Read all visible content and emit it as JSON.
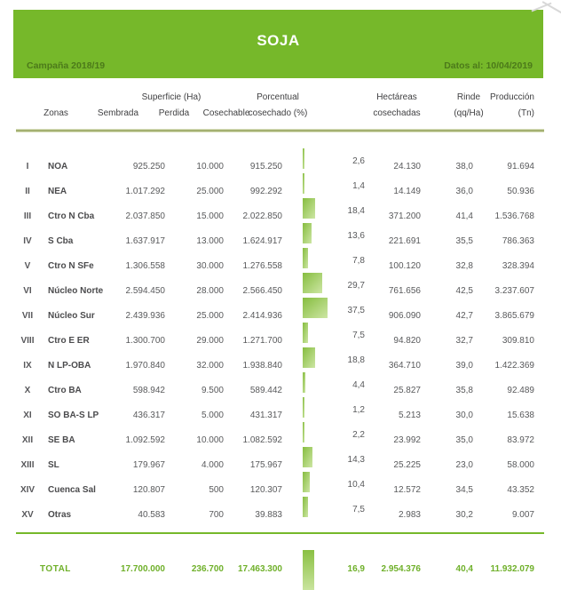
{
  "banner": {
    "title": "SOJA",
    "campaign": "Campaña 2018/19",
    "data_as_of": "Datos al: 10/04/2019"
  },
  "colors": {
    "primary_green": "#76b82a",
    "banner_text_green": "#4c7a1a",
    "table_text": "#58595b",
    "total_text": "#6fb02a",
    "bar_gradient_start": "#86bd3f",
    "bar_gradient_end": "#cde6a4"
  },
  "table": {
    "group_header": "Superficie (Ha)",
    "columns": {
      "zonas": "Zonas",
      "sembrada": "Sembrada",
      "perdida": "Perdida",
      "cosechable": "Cosechable",
      "porcentual_line1": "Porcentual",
      "porcentual_line2": "cosechado (%)",
      "hectareas_line1": "Hectáreas",
      "hectareas_line2": "cosechadas",
      "rinde_line1": "Rinde",
      "rinde_line2": "(qq/Ha)",
      "produccion_line1": "Producción",
      "produccion_line2": "(Tn)"
    },
    "rows": [
      {
        "num": "I",
        "zone": "NOA",
        "sembrada": "925.250",
        "perdida": "10.000",
        "cosechable": "915.250",
        "pct": "2,6",
        "pct_value": 2.6,
        "ha": "24.130",
        "rinde": "38,0",
        "prod": "91.694"
      },
      {
        "num": "II",
        "zone": "NEA",
        "sembrada": "1.017.292",
        "perdida": "25.000",
        "cosechable": "992.292",
        "pct": "1,4",
        "pct_value": 1.4,
        "ha": "14.149",
        "rinde": "36,0",
        "prod": "50.936"
      },
      {
        "num": "III",
        "zone": "Ctro N Cba",
        "sembrada": "2.037.850",
        "perdida": "15.000",
        "cosechable": "2.022.850",
        "pct": "18,4",
        "pct_value": 18.4,
        "ha": "371.200",
        "rinde": "41,4",
        "prod": "1.536.768"
      },
      {
        "num": "IV",
        "zone": "S Cba",
        "sembrada": "1.637.917",
        "perdida": "13.000",
        "cosechable": "1.624.917",
        "pct": "13,6",
        "pct_value": 13.6,
        "ha": "221.691",
        "rinde": "35,5",
        "prod": "786.363"
      },
      {
        "num": "V",
        "zone": "Ctro N SFe",
        "sembrada": "1.306.558",
        "perdida": "30.000",
        "cosechable": "1.276.558",
        "pct": "7,8",
        "pct_value": 7.8,
        "ha": "100.120",
        "rinde": "32,8",
        "prod": "328.394"
      },
      {
        "num": "VI",
        "zone": "Núcleo Norte",
        "sembrada": "2.594.450",
        "perdida": "28.000",
        "cosechable": "2.566.450",
        "pct": "29,7",
        "pct_value": 29.7,
        "ha": "761.656",
        "rinde": "42,5",
        "prod": "3.237.607"
      },
      {
        "num": "VII",
        "zone": "Núcleo Sur",
        "sembrada": "2.439.936",
        "perdida": "25.000",
        "cosechable": "2.414.936",
        "pct": "37,5",
        "pct_value": 37.5,
        "ha": "906.090",
        "rinde": "42,7",
        "prod": "3.865.679"
      },
      {
        "num": "VIII",
        "zone": "Ctro E ER",
        "sembrada": "1.300.700",
        "perdida": "29.000",
        "cosechable": "1.271.700",
        "pct": "7,5",
        "pct_value": 7.5,
        "ha": "94.820",
        "rinde": "32,7",
        "prod": "309.810"
      },
      {
        "num": "IX",
        "zone": "N LP-OBA",
        "sembrada": "1.970.840",
        "perdida": "32.000",
        "cosechable": "1.938.840",
        "pct": "18,8",
        "pct_value": 18.8,
        "ha": "364.710",
        "rinde": "39,0",
        "prod": "1.422.369"
      },
      {
        "num": "X",
        "zone": "Ctro BA",
        "sembrada": "598.942",
        "perdida": "9.500",
        "cosechable": "589.442",
        "pct": "4,4",
        "pct_value": 4.4,
        "ha": "25.827",
        "rinde": "35,8",
        "prod": "92.489"
      },
      {
        "num": "XI",
        "zone": "SO BA-S LP",
        "sembrada": "436.317",
        "perdida": "5.000",
        "cosechable": "431.317",
        "pct": "1,2",
        "pct_value": 1.2,
        "ha": "5.213",
        "rinde": "30,0",
        "prod": "15.638"
      },
      {
        "num": "XII",
        "zone": "SE BA",
        "sembrada": "1.092.592",
        "perdida": "10.000",
        "cosechable": "1.082.592",
        "pct": "2,2",
        "pct_value": 2.2,
        "ha": "23.992",
        "rinde": "35,0",
        "prod": "83.972"
      },
      {
        "num": "XIII",
        "zone": "SL",
        "sembrada": "179.967",
        "perdida": "4.000",
        "cosechable": "175.967",
        "pct": "14,3",
        "pct_value": 14.3,
        "ha": "25.225",
        "rinde": "23,0",
        "prod": "58.000"
      },
      {
        "num": "XIV",
        "zone": "Cuenca Sal",
        "sembrada": "120.807",
        "perdida": "500",
        "cosechable": "120.307",
        "pct": "10,4",
        "pct_value": 10.4,
        "ha": "12.572",
        "rinde": "34,5",
        "prod": "43.352"
      },
      {
        "num": "XV",
        "zone": "Otras",
        "sembrada": "40.583",
        "perdida": "700",
        "cosechable": "39.883",
        "pct": "7,5",
        "pct_value": 7.5,
        "ha": "2.983",
        "rinde": "30,2",
        "prod": "9.007"
      }
    ],
    "total": {
      "label": "TOTAL",
      "sembrada": "17.700.000",
      "perdida": "236.700",
      "cosechable": "17.463.300",
      "pct": "16,9",
      "pct_value": 16.9,
      "ha": "2.954.376",
      "rinde": "40,4",
      "prod": "11.932.079"
    }
  }
}
